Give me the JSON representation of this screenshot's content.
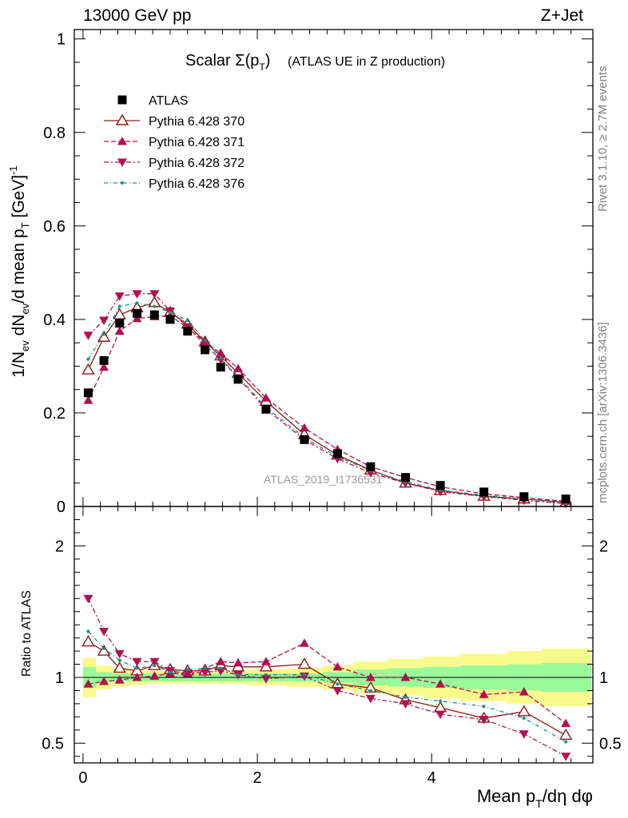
{
  "header": {
    "left": "13000 GeV pp",
    "right": "Z+Jet"
  },
  "plot_title": "Scalar Σ(p",
  "plot_title_sub": "T",
  "plot_title_close": ")",
  "plot_title_extra": "(ATLAS UE in Z production)",
  "side_label_top": "Rivet 3.1.10, ≥ 2.7M events",
  "side_label_bottom": "mcplots.cern.ch [arXiv:1306.3436]",
  "watermark": "ATLAS_2019_I1736531",
  "ratio_ylabel": "Ratio to ATLAS",
  "colors": {
    "data": "#000000",
    "p370": "#8b1a1a",
    "p371": "#b0104f",
    "p372": "#b0104f",
    "p376": "#1f8f7f",
    "band_inner": "#98fa98",
    "band_outer": "#fafa8c"
  },
  "chart_data": {
    "type": "scatter",
    "xlabel": "Mean p_T/dη dφ",
    "ylabel": "1/N_ev dN_ev/d mean p_T [GeV]^-1",
    "xlim": [
      -0.1,
      5.85
    ],
    "ylim": [
      0,
      1.02
    ],
    "ratio_ylim": [
      0.35,
      2.3
    ],
    "x_ticks": [
      "0",
      "2",
      "4"
    ],
    "y_ticks": [
      "0",
      "0.2",
      "0.4",
      "0.6",
      "0.8",
      "1"
    ],
    "ratio_ticks": [
      "0.5",
      "1",
      "2"
    ],
    "x": [
      0.06,
      0.24,
      0.42,
      0.62,
      0.82,
      1.0,
      1.2,
      1.4,
      1.58,
      1.78,
      2.1,
      2.54,
      2.92,
      3.3,
      3.7,
      4.1,
      4.6,
      5.06,
      5.54
    ],
    "x_edges": [
      0.0,
      0.15,
      0.33,
      0.52,
      0.72,
      0.91,
      1.1,
      1.3,
      1.49,
      1.68,
      1.88,
      2.33,
      2.75,
      3.1,
      3.5,
      3.9,
      4.33,
      4.87,
      5.26,
      5.83
    ],
    "series": [
      {
        "name": "ATLAS",
        "values": [
          0.243,
          0.312,
          0.392,
          0.413,
          0.41,
          0.4,
          0.375,
          0.335,
          0.298,
          0.272,
          0.208,
          0.143,
          0.113,
          0.085,
          0.062,
          0.045,
          0.031,
          0.021,
          0.016
        ],
        "ratio_band_inner": [
          0.08,
          0.04,
          0.03,
          0.03,
          0.03,
          0.03,
          0.03,
          0.03,
          0.03,
          0.03,
          0.03,
          0.03,
          0.04,
          0.06,
          0.07,
          0.08,
          0.09,
          0.1,
          0.11
        ],
        "ratio_band_outer": [
          0.15,
          0.09,
          0.07,
          0.06,
          0.05,
          0.05,
          0.05,
          0.05,
          0.05,
          0.05,
          0.06,
          0.07,
          0.09,
          0.12,
          0.14,
          0.16,
          0.18,
          0.2,
          0.22
        ]
      },
      {
        "name": "Pythia 6.428 370",
        "values": [
          0.292,
          0.362,
          0.41,
          0.425,
          0.436,
          0.415,
          0.39,
          0.352,
          0.322,
          0.285,
          0.225,
          0.154,
          0.11,
          0.078,
          0.05,
          0.034,
          0.022,
          0.016,
          0.009
        ],
        "ratio": [
          1.27,
          1.2,
          1.07,
          1.05,
          1.09,
          1.06,
          1.05,
          1.05,
          1.09,
          1.08,
          1.08,
          1.1,
          0.95,
          0.92,
          0.83,
          0.77,
          0.69,
          0.74,
          0.56
        ]
      },
      {
        "name": "Pythia 6.428 371",
        "values": [
          0.227,
          0.298,
          0.375,
          0.402,
          0.406,
          0.408,
          0.382,
          0.352,
          0.328,
          0.295,
          0.232,
          0.168,
          0.122,
          0.085,
          0.062,
          0.042,
          0.027,
          0.019,
          0.011
        ],
        "ratio": [
          0.95,
          0.97,
          0.98,
          1.0,
          1.01,
          1.03,
          1.03,
          1.07,
          1.12,
          1.11,
          1.12,
          1.26,
          1.08,
          1.0,
          1.0,
          0.95,
          0.87,
          0.89,
          0.65
        ]
      },
      {
        "name": "Pythia 6.428 372",
        "values": [
          0.366,
          0.398,
          0.45,
          0.455,
          0.455,
          0.418,
          0.384,
          0.345,
          0.315,
          0.275,
          0.208,
          0.143,
          0.102,
          0.072,
          0.05,
          0.032,
          0.021,
          0.013,
          0.006
        ],
        "ratio": [
          1.6,
          1.35,
          1.18,
          1.12,
          1.12,
          1.05,
          1.03,
          1.04,
          1.05,
          1.02,
          0.99,
          1.01,
          0.9,
          0.84,
          0.8,
          0.72,
          0.68,
          0.57,
          0.4
        ]
      },
      {
        "name": "Pythia 6.428 376",
        "values": [
          0.315,
          0.368,
          0.428,
          0.435,
          0.428,
          0.415,
          0.398,
          0.355,
          0.318,
          0.278,
          0.212,
          0.147,
          0.106,
          0.077,
          0.053,
          0.035,
          0.024,
          0.016,
          0.007
        ],
        "ratio": [
          1.35,
          1.22,
          1.13,
          1.07,
          1.09,
          1.04,
          1.06,
          1.07,
          1.07,
          1.02,
          1.02,
          1.02,
          0.95,
          0.9,
          0.85,
          0.82,
          0.78,
          0.69,
          0.51
        ]
      }
    ],
    "legend": [
      "ATLAS",
      "Pythia 6.428 370",
      "Pythia 6.428 371",
      "Pythia 6.428 372",
      "Pythia 6.428 376"
    ],
    "legend_placement": "top-left"
  }
}
